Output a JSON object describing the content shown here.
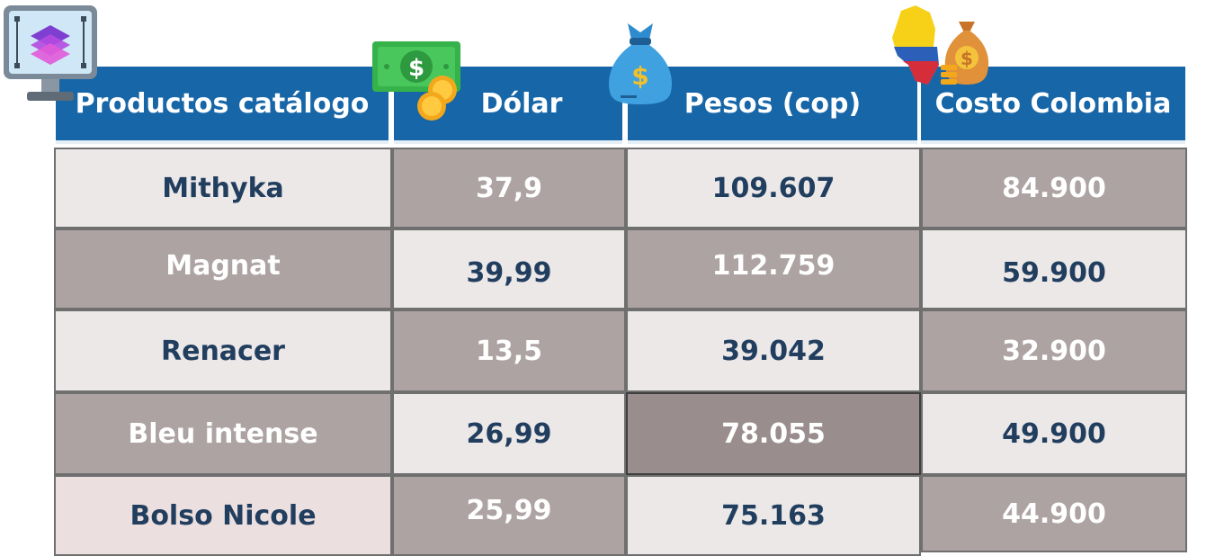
{
  "table": {
    "headers": [
      "Productos catálogo",
      "Dólar",
      "Pesos (cop)",
      "Costo Colombia"
    ],
    "rows": [
      [
        "Mithyka",
        "37,9",
        "109.607",
        "84.900"
      ],
      [
        "Magnat",
        "39,99",
        "112.759",
        "59.900"
      ],
      [
        "Renacer",
        "13,5",
        "39.042",
        "32.900"
      ],
      [
        "Bleu intense",
        "26,99",
        "78.055",
        "49.900"
      ],
      [
        "Bolso Nicole",
        "25,99",
        "75.163",
        "44.900"
      ]
    ]
  },
  "icons": {
    "monitor": "monitor-layers-icon",
    "banknote": "banknote-coins-icon",
    "money_bag": "money-bag-icon",
    "colombia": "colombia-map-money-bag-icon"
  },
  "colors": {
    "header_bg": "#1766a8",
    "cell_light": "#ece8e8",
    "cell_dark": "#ada3a3",
    "text_navy": "#213e5f"
  }
}
